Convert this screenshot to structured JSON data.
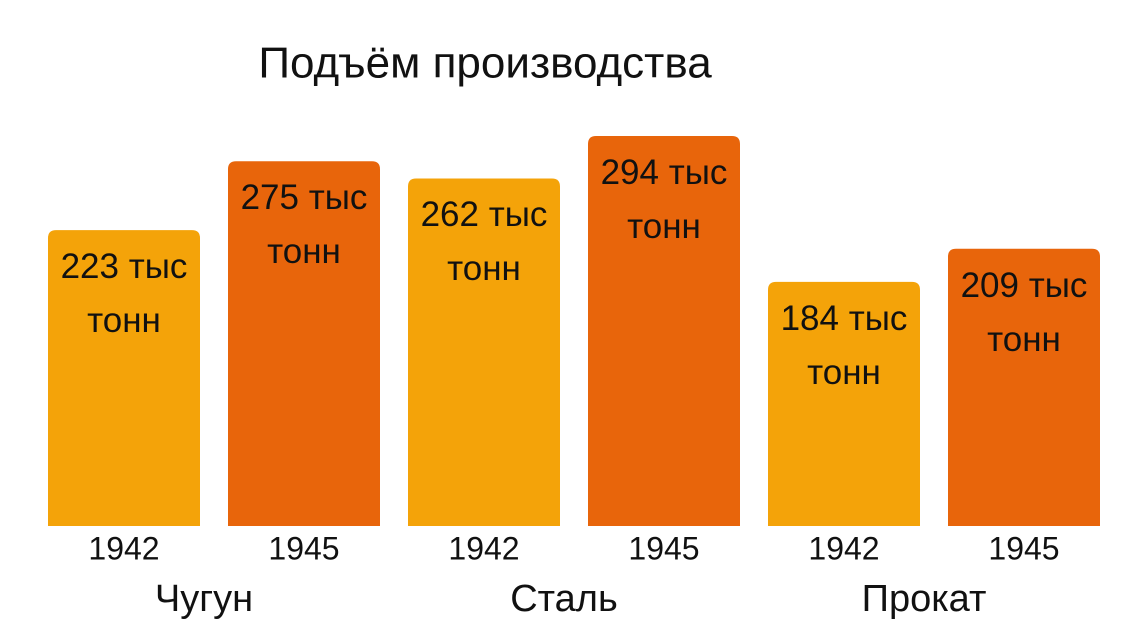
{
  "chart_data": {
    "type": "bar",
    "title": "Подъём производства",
    "categories": [
      "Чугун",
      "Сталь",
      "Прокат"
    ],
    "series": [
      {
        "name": "1942",
        "color": "#f4a309",
        "values": [
          223,
          262,
          184
        ],
        "value_labels": [
          "223 тыс тонн",
          "262 тыс тонн",
          "184 тыс тонн"
        ]
      },
      {
        "name": "1945",
        "color": "#e8650b",
        "values": [
          275,
          294,
          209
        ],
        "value_labels": [
          "275 тыс тонн",
          "294 тыс тонн",
          "209 тыс тонн"
        ]
      }
    ]
  }
}
